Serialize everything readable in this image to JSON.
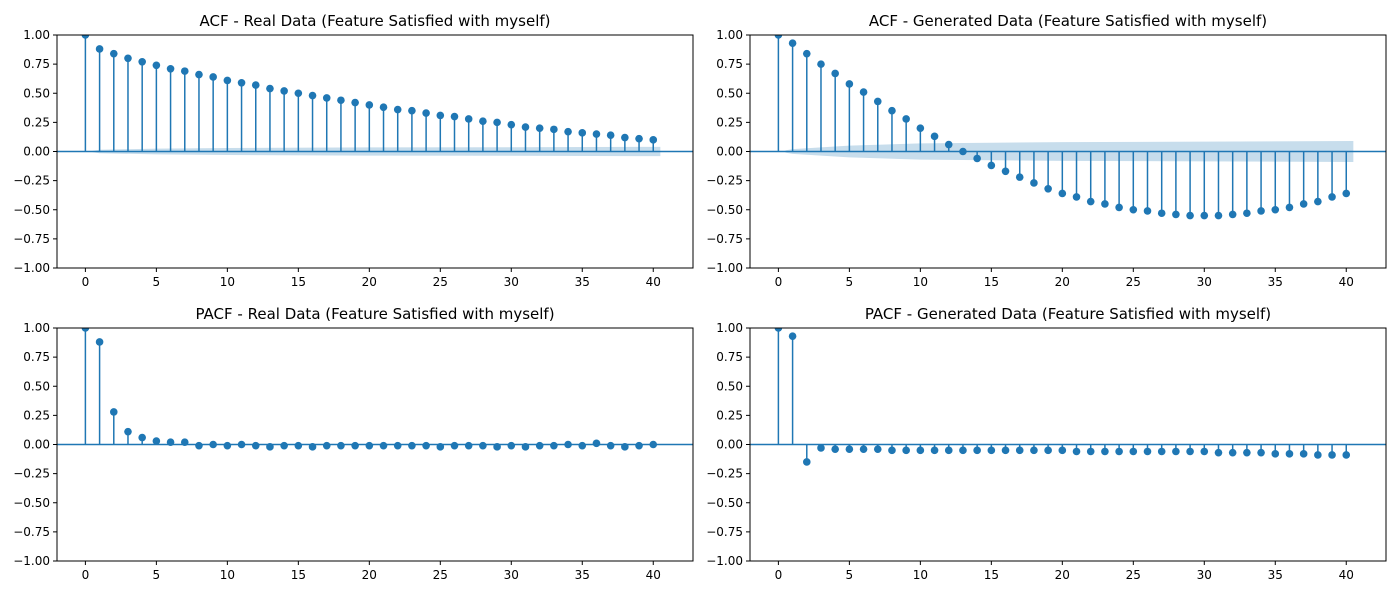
{
  "colors": {
    "series": "#1f77b4",
    "band": "#1f77b4"
  },
  "chart_data": [
    {
      "type": "stem",
      "title": "ACF - Real Data (Feature Satisfied with myself)",
      "xlim": [
        -2,
        42.8
      ],
      "ylim": [
        -1.0,
        1.0
      ],
      "xticks": [
        0,
        5,
        10,
        15,
        20,
        25,
        30,
        35,
        40
      ],
      "xtick_labels": [
        "0",
        "5",
        "10",
        "15",
        "20",
        "25",
        "30",
        "35",
        "40"
      ],
      "yticks": [
        -1.0,
        -0.75,
        -0.5,
        -0.25,
        0.0,
        0.25,
        0.5,
        0.75,
        1.0
      ],
      "ytick_labels": [
        "−1.00",
        "−0.75",
        "−0.50",
        "−0.25",
        "0.00",
        "0.25",
        "0.50",
        "0.75",
        "1.00"
      ],
      "lags": [
        0,
        1,
        2,
        3,
        4,
        5,
        6,
        7,
        8,
        9,
        10,
        11,
        12,
        13,
        14,
        15,
        16,
        17,
        18,
        19,
        20,
        21,
        22,
        23,
        24,
        25,
        26,
        27,
        28,
        29,
        30,
        31,
        32,
        33,
        34,
        35,
        36,
        37,
        38,
        39,
        40
      ],
      "values": [
        1.0,
        0.88,
        0.84,
        0.8,
        0.77,
        0.74,
        0.71,
        0.69,
        0.66,
        0.64,
        0.61,
        0.59,
        0.57,
        0.54,
        0.52,
        0.5,
        0.48,
        0.46,
        0.44,
        0.42,
        0.4,
        0.38,
        0.36,
        0.35,
        0.33,
        0.31,
        0.3,
        0.28,
        0.26,
        0.25,
        0.23,
        0.21,
        0.2,
        0.19,
        0.17,
        0.16,
        0.15,
        0.14,
        0.12,
        0.11,
        0.1
      ],
      "confidence_band": {
        "lags": [
          0.5,
          1,
          5,
          10,
          20,
          30,
          40.5
        ],
        "upper": [
          0.005,
          0.015,
          0.025,
          0.03,
          0.035,
          0.037,
          0.04
        ],
        "lower": [
          -0.005,
          -0.015,
          -0.025,
          -0.03,
          -0.035,
          -0.037,
          -0.04
        ]
      }
    },
    {
      "type": "stem",
      "title": "ACF - Generated Data (Feature Satisfied with myself)",
      "xlim": [
        -2,
        42.8
      ],
      "ylim": [
        -1.0,
        1.0
      ],
      "xticks": [
        0,
        5,
        10,
        15,
        20,
        25,
        30,
        35,
        40
      ],
      "xtick_labels": [
        "0",
        "5",
        "10",
        "15",
        "20",
        "25",
        "30",
        "35",
        "40"
      ],
      "yticks": [
        -1.0,
        -0.75,
        -0.5,
        -0.25,
        0.0,
        0.25,
        0.5,
        0.75,
        1.0
      ],
      "ytick_labels": [
        "−1.00",
        "−0.75",
        "−0.50",
        "−0.25",
        "0.00",
        "0.25",
        "0.50",
        "0.75",
        "1.00"
      ],
      "lags": [
        0,
        1,
        2,
        3,
        4,
        5,
        6,
        7,
        8,
        9,
        10,
        11,
        12,
        13,
        14,
        15,
        16,
        17,
        18,
        19,
        20,
        21,
        22,
        23,
        24,
        25,
        26,
        27,
        28,
        29,
        30,
        31,
        32,
        33,
        34,
        35,
        36,
        37,
        38,
        39,
        40
      ],
      "values": [
        1.0,
        0.93,
        0.84,
        0.75,
        0.67,
        0.58,
        0.51,
        0.43,
        0.35,
        0.28,
        0.2,
        0.13,
        0.06,
        0.0,
        -0.06,
        -0.12,
        -0.17,
        -0.22,
        -0.27,
        -0.32,
        -0.36,
        -0.39,
        -0.43,
        -0.45,
        -0.48,
        -0.5,
        -0.51,
        -0.53,
        -0.54,
        -0.55,
        -0.55,
        -0.55,
        -0.54,
        -0.53,
        -0.51,
        -0.5,
        -0.48,
        -0.45,
        -0.43,
        -0.39,
        -0.36
      ],
      "confidence_band": {
        "lags": [
          0.5,
          1,
          5,
          10,
          15,
          20,
          30,
          40.5
        ],
        "upper": [
          0.01,
          0.02,
          0.05,
          0.07,
          0.075,
          0.08,
          0.085,
          0.09
        ],
        "lower": [
          -0.01,
          -0.02,
          -0.05,
          -0.07,
          -0.075,
          -0.08,
          -0.085,
          -0.09
        ]
      }
    },
    {
      "type": "stem",
      "title": "PACF - Real Data (Feature Satisfied with myself)",
      "xlim": [
        -2,
        42.8
      ],
      "ylim": [
        -1.0,
        1.0
      ],
      "xticks": [
        0,
        5,
        10,
        15,
        20,
        25,
        30,
        35,
        40
      ],
      "xtick_labels": [
        "0",
        "5",
        "10",
        "15",
        "20",
        "25",
        "30",
        "35",
        "40"
      ],
      "yticks": [
        -1.0,
        -0.75,
        -0.5,
        -0.25,
        0.0,
        0.25,
        0.5,
        0.75,
        1.0
      ],
      "ytick_labels": [
        "−1.00",
        "−0.75",
        "−0.50",
        "−0.25",
        "0.00",
        "0.25",
        "0.50",
        "0.75",
        "1.00"
      ],
      "lags": [
        0,
        1,
        2,
        3,
        4,
        5,
        6,
        7,
        8,
        9,
        10,
        11,
        12,
        13,
        14,
        15,
        16,
        17,
        18,
        19,
        20,
        21,
        22,
        23,
        24,
        25,
        26,
        27,
        28,
        29,
        30,
        31,
        32,
        33,
        34,
        35,
        36,
        37,
        38,
        39,
        40
      ],
      "values": [
        1.0,
        0.88,
        0.28,
        0.11,
        0.06,
        0.03,
        0.02,
        0.02,
        -0.01,
        0.0,
        -0.01,
        0.0,
        -0.01,
        -0.02,
        -0.01,
        -0.01,
        -0.02,
        -0.01,
        -0.01,
        -0.01,
        -0.01,
        -0.01,
        -0.01,
        -0.01,
        -0.01,
        -0.02,
        -0.01,
        -0.01,
        -0.01,
        -0.02,
        -0.01,
        -0.02,
        -0.01,
        -0.01,
        0.0,
        -0.01,
        0.01,
        -0.01,
        -0.02,
        -0.01,
        0.0
      ],
      "confidence_band": {
        "lags": [
          0.5,
          40.5
        ],
        "upper": [
          0.0,
          0.0
        ],
        "lower": [
          0.0,
          0.0
        ]
      }
    },
    {
      "type": "stem",
      "title": "PACF - Generated Data (Feature Satisfied with myself)",
      "xlim": [
        -2,
        42.8
      ],
      "ylim": [
        -1.0,
        1.0
      ],
      "xticks": [
        0,
        5,
        10,
        15,
        20,
        25,
        30,
        35,
        40
      ],
      "xtick_labels": [
        "0",
        "5",
        "10",
        "15",
        "20",
        "25",
        "30",
        "35",
        "40"
      ],
      "yticks": [
        -1.0,
        -0.75,
        -0.5,
        -0.25,
        0.0,
        0.25,
        0.5,
        0.75,
        1.0
      ],
      "ytick_labels": [
        "−1.00",
        "−0.75",
        "−0.50",
        "−0.25",
        "0.00",
        "0.25",
        "0.50",
        "0.75",
        "1.00"
      ],
      "lags": [
        0,
        1,
        2,
        3,
        4,
        5,
        6,
        7,
        8,
        9,
        10,
        11,
        12,
        13,
        14,
        15,
        16,
        17,
        18,
        19,
        20,
        21,
        22,
        23,
        24,
        25,
        26,
        27,
        28,
        29,
        30,
        31,
        32,
        33,
        34,
        35,
        36,
        37,
        38,
        39,
        40
      ],
      "values": [
        1.0,
        0.93,
        -0.15,
        -0.03,
        -0.04,
        -0.04,
        -0.04,
        -0.04,
        -0.05,
        -0.05,
        -0.05,
        -0.05,
        -0.05,
        -0.05,
        -0.05,
        -0.05,
        -0.05,
        -0.05,
        -0.05,
        -0.05,
        -0.05,
        -0.06,
        -0.06,
        -0.06,
        -0.06,
        -0.06,
        -0.06,
        -0.06,
        -0.06,
        -0.06,
        -0.06,
        -0.07,
        -0.07,
        -0.07,
        -0.07,
        -0.08,
        -0.08,
        -0.08,
        -0.09,
        -0.09,
        -0.09
      ],
      "confidence_band": {
        "lags": [
          0.5,
          40.5
        ],
        "upper": [
          0.0,
          0.0
        ],
        "lower": [
          0.0,
          0.0
        ]
      }
    }
  ]
}
